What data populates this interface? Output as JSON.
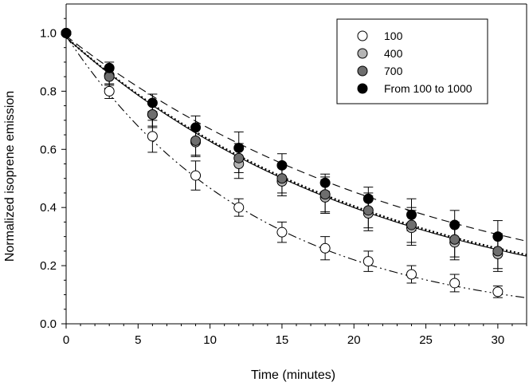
{
  "chart_data": {
    "type": "scatter",
    "title": "",
    "xlabel": "Time (minutes)",
    "ylabel": "Normalized isoprene emission",
    "xlim": [
      0,
      32
    ],
    "ylim": [
      0,
      1.1
    ],
    "x_ticks": [
      0,
      5,
      10,
      15,
      20,
      25,
      30
    ],
    "y_ticks": [
      0.0,
      0.2,
      0.4,
      0.6,
      0.8,
      1.0
    ],
    "x_tick_labels": [
      "0",
      "5",
      "10",
      "15",
      "20",
      "25",
      "30"
    ],
    "y_tick_labels": [
      "0.0",
      "0.2",
      "0.4",
      "0.6",
      "0.8",
      "1.0"
    ],
    "grid": false,
    "legend_position": "top-right",
    "x": [
      0,
      3,
      6,
      9,
      12,
      15,
      18,
      21,
      24,
      27,
      30
    ],
    "series": [
      {
        "name": "100",
        "marker_fill": "#ffffff",
        "values": [
          1.0,
          0.8,
          0.645,
          0.51,
          0.4,
          0.315,
          0.26,
          0.215,
          0.17,
          0.14,
          0.11
        ],
        "errors": [
          0,
          0.025,
          0.055,
          0.05,
          0.03,
          0.035,
          0.04,
          0.035,
          0.03,
          0.03,
          0.02
        ],
        "fit_line": "dash-dot-dot",
        "fit_k": 0.0752,
        "fit_y0": 0.99
      },
      {
        "name": "400",
        "marker_fill": "#b4b4b4",
        "values": [
          1.0,
          0.855,
          0.72,
          0.625,
          0.55,
          0.49,
          0.435,
          0.38,
          0.33,
          0.28,
          0.24
        ],
        "errors": [
          0,
          0.03,
          0.045,
          0.05,
          0.05,
          0.05,
          0.055,
          0.06,
          0.06,
          0.06,
          0.06
        ],
        "fit_line": "solid",
        "fit_k": 0.0451,
        "fit_y0": 0.985
      },
      {
        "name": "700",
        "marker_fill": "#6e6e6e",
        "values": [
          1.0,
          0.85,
          0.72,
          0.63,
          0.57,
          0.5,
          0.445,
          0.39,
          0.34,
          0.29,
          0.25
        ],
        "errors": [
          0,
          0.03,
          0.04,
          0.05,
          0.05,
          0.05,
          0.06,
          0.06,
          0.06,
          0.06,
          0.06
        ],
        "fit_line": "dotted",
        "fit_k": 0.0445,
        "fit_y0": 0.985
      },
      {
        "name": "From 100 to 1000",
        "marker_fill": "#000000",
        "values": [
          1.0,
          0.88,
          0.76,
          0.675,
          0.605,
          0.545,
          0.485,
          0.43,
          0.375,
          0.34,
          0.3
        ],
        "errors": [
          0,
          0.02,
          0.03,
          0.04,
          0.055,
          0.04,
          0.03,
          0.04,
          0.055,
          0.05,
          0.055
        ],
        "fit_line": "dashed",
        "fit_k": 0.039,
        "fit_y0": 0.99
      }
    ]
  }
}
